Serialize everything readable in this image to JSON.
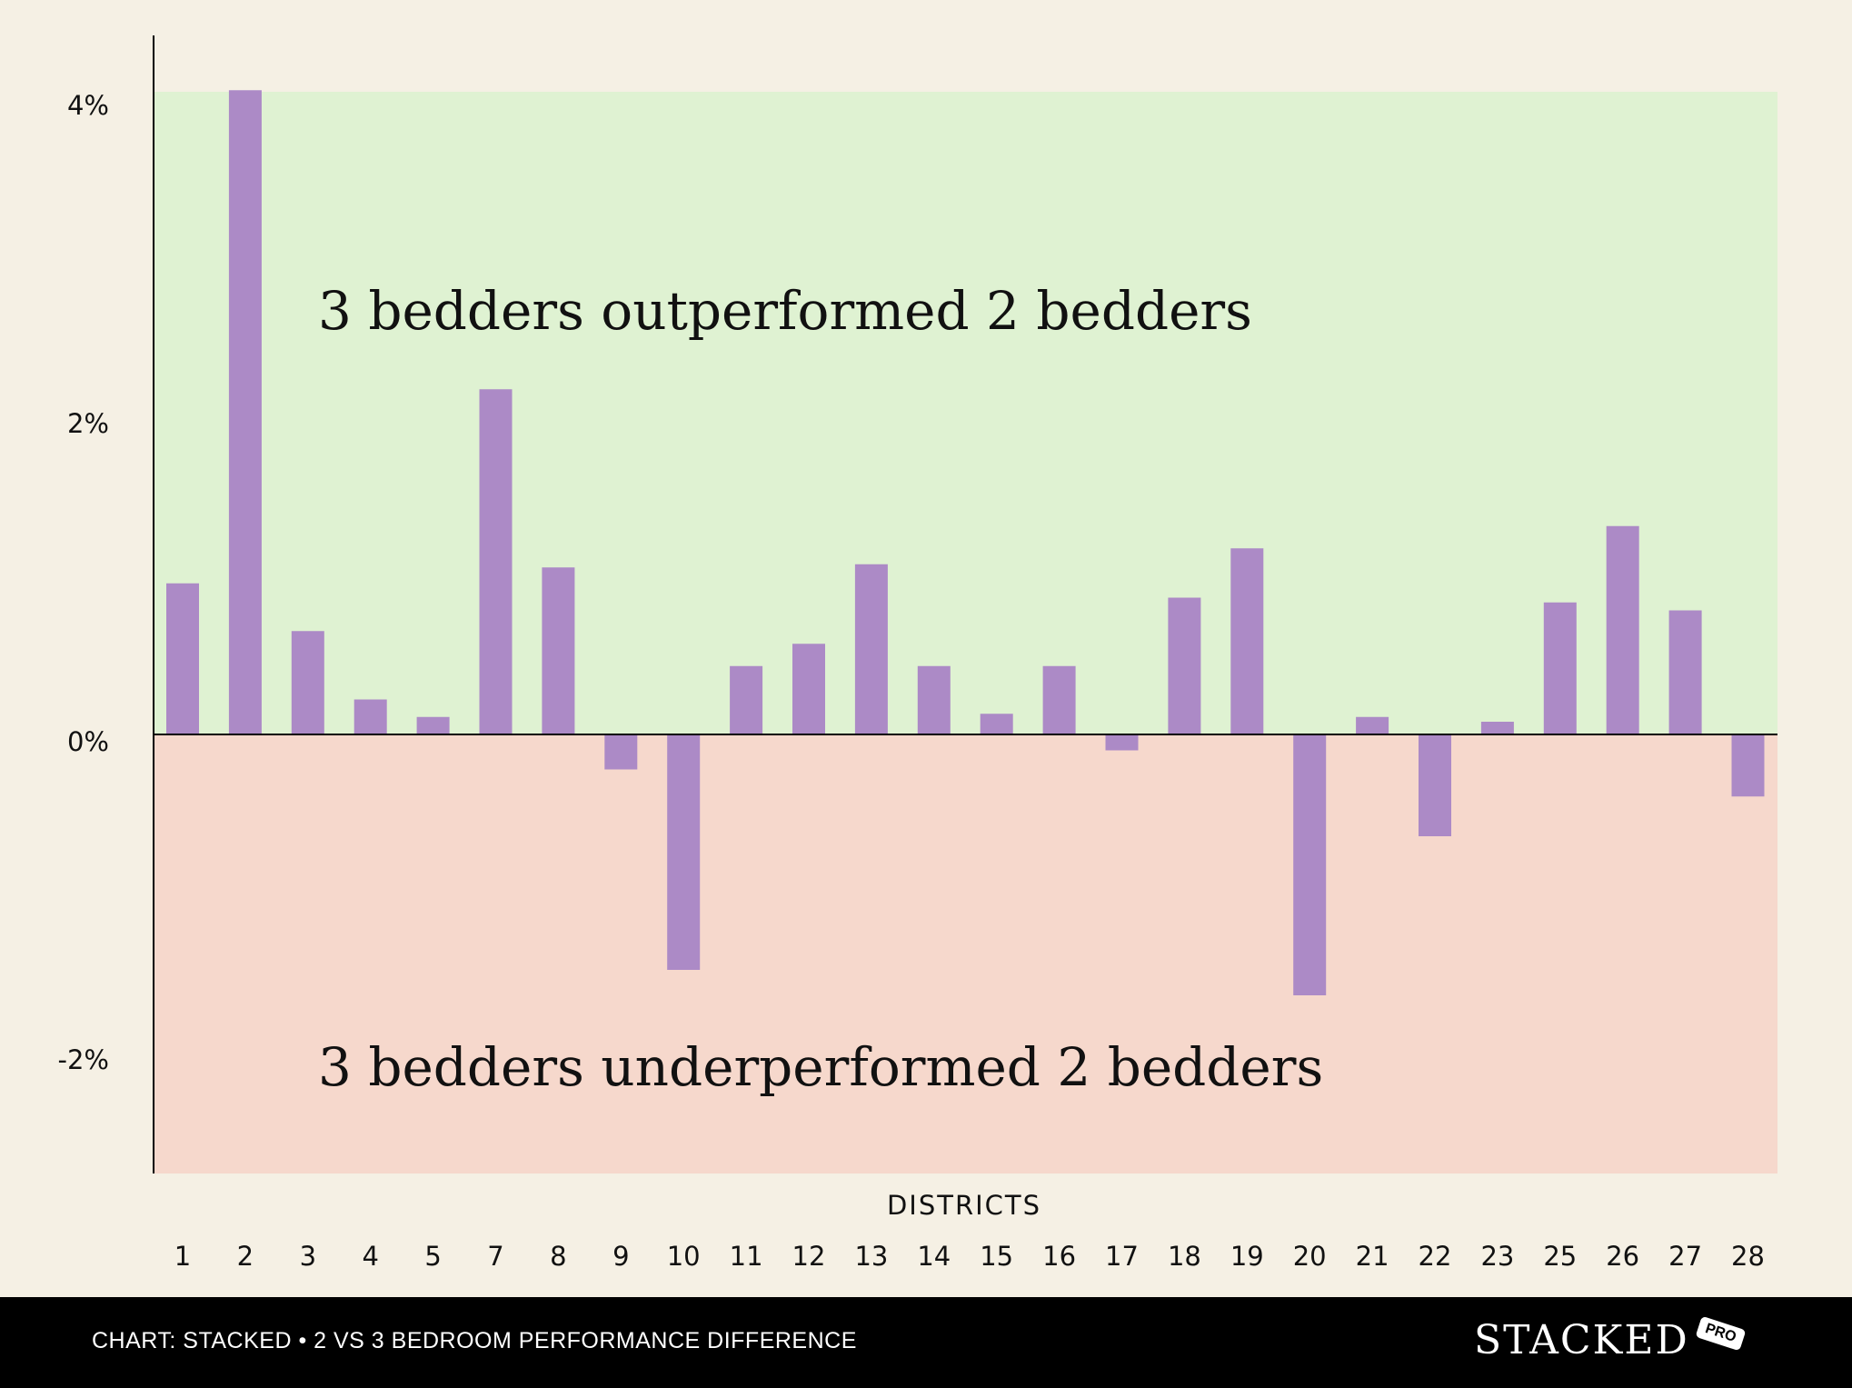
{
  "chart_data": {
    "type": "bar",
    "xlabel": "DISTRICTS",
    "ylabel": "",
    "categories": [
      "1",
      "2",
      "3",
      "4",
      "5",
      "7",
      "8",
      "9",
      "10",
      "11",
      "12",
      "13",
      "14",
      "15",
      "16",
      "17",
      "18",
      "19",
      "20",
      "21",
      "22",
      "23",
      "25",
      "26",
      "27",
      "28"
    ],
    "values": [
      0.95,
      4.05,
      0.65,
      0.22,
      0.11,
      2.17,
      1.05,
      -0.22,
      -1.48,
      0.43,
      0.57,
      1.07,
      0.43,
      0.13,
      0.43,
      -0.1,
      0.86,
      1.17,
      -1.64,
      0.11,
      -0.64,
      0.08,
      0.83,
      1.31,
      0.78,
      -0.39
    ],
    "yticks": [
      4,
      2,
      0,
      -2
    ],
    "ytick_labels": [
      "4%",
      "2%",
      "0%",
      "-2%"
    ],
    "ylim": [
      -2.76,
      4.04
    ],
    "grid": false,
    "annotations": {
      "positive": "3 bedders outperformed 2 bedders",
      "negative": "3 bedders underperformed 2 bedders"
    },
    "colors": {
      "bar": "#ac8ac6",
      "positive_region": "#dff2d2",
      "negative_region": "#f6d8cc",
      "background": "#f5f0e4"
    }
  },
  "footer": {
    "caption": "CHART: STACKED • 2 VS 3 BEDROOM PERFORMANCE DIFFERENCE",
    "logo": "STACKED",
    "logo_badge": "PRO"
  }
}
